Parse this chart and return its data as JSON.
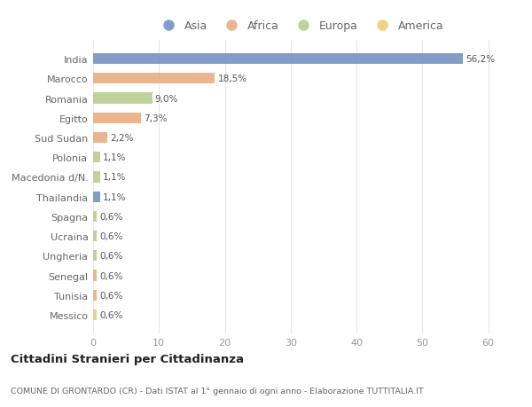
{
  "categories": [
    "India",
    "Marocco",
    "Romania",
    "Egitto",
    "Sud Sudan",
    "Polonia",
    "Macedonia d/N.",
    "Thailandia",
    "Spagna",
    "Ucraina",
    "Ungheria",
    "Senegal",
    "Tunisia",
    "Messico"
  ],
  "values": [
    56.2,
    18.5,
    9.0,
    7.3,
    2.2,
    1.1,
    1.1,
    1.1,
    0.6,
    0.6,
    0.6,
    0.6,
    0.6,
    0.6
  ],
  "labels": [
    "56,2%",
    "18,5%",
    "9,0%",
    "7,3%",
    "2,2%",
    "1,1%",
    "1,1%",
    "1,1%",
    "0,6%",
    "0,6%",
    "0,6%",
    "0,6%",
    "0,6%",
    "0,6%"
  ],
  "continent": [
    "Asia",
    "Africa",
    "Europa",
    "Africa",
    "Africa",
    "Europa",
    "Europa",
    "Asia",
    "Europa",
    "Europa",
    "Europa",
    "Africa",
    "Africa",
    "America"
  ],
  "colors": {
    "Asia": "#6b8cbf",
    "Africa": "#e8a87c",
    "Europa": "#b5c98a",
    "America": "#f0c96e"
  },
  "legend_order": [
    "Asia",
    "Africa",
    "Europa",
    "America"
  ],
  "title": "Cittadini Stranieri per Cittadinanza",
  "subtitle": "COMUNE DI GRONTARDO (CR) - Dati ISTAT al 1° gennaio di ogni anno - Elaborazione TUTTITALIA.IT",
  "xlabel_ticks": [
    0,
    10,
    20,
    30,
    40,
    50,
    60
  ],
  "bg_color": "#ffffff",
  "grid_color": "#e8e8e8"
}
